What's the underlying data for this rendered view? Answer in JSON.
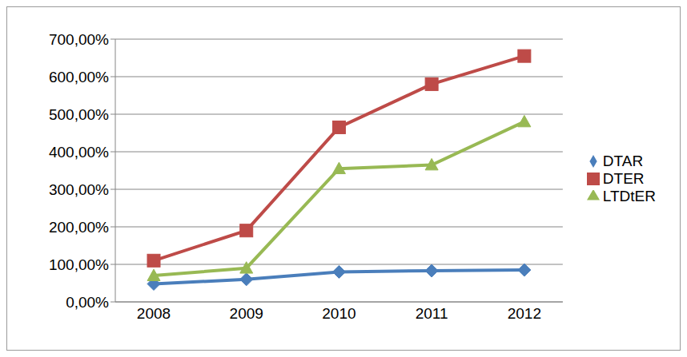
{
  "chart_data": {
    "type": "line",
    "categories": [
      "2008",
      "2009",
      "2010",
      "2011",
      "2012"
    ],
    "series": [
      {
        "name": "DTAR",
        "color": "#4a7ebb",
        "marker": "diamond",
        "values": [
          48,
          60,
          80,
          83,
          85
        ]
      },
      {
        "name": "DTER",
        "color": "#be4b48",
        "marker": "square",
        "values": [
          110,
          190,
          465,
          580,
          655
        ]
      },
      {
        "name": "LTDtER",
        "color": "#98b954",
        "marker": "triangle",
        "values": [
          70,
          90,
          355,
          365,
          480
        ]
      }
    ],
    "ylim": [
      0,
      700
    ],
    "yticks": [
      {
        "value": 0,
        "label": "0,00%"
      },
      {
        "value": 100,
        "label": "100,00%"
      },
      {
        "value": 200,
        "label": "200,00%"
      },
      {
        "value": 300,
        "label": "300,00%"
      },
      {
        "value": 400,
        "label": "400,00%"
      },
      {
        "value": 500,
        "label": "500,00%"
      },
      {
        "value": 600,
        "label": "600,00%"
      },
      {
        "value": 700,
        "label": "700,00%"
      }
    ],
    "grid": true,
    "legend": "right"
  }
}
